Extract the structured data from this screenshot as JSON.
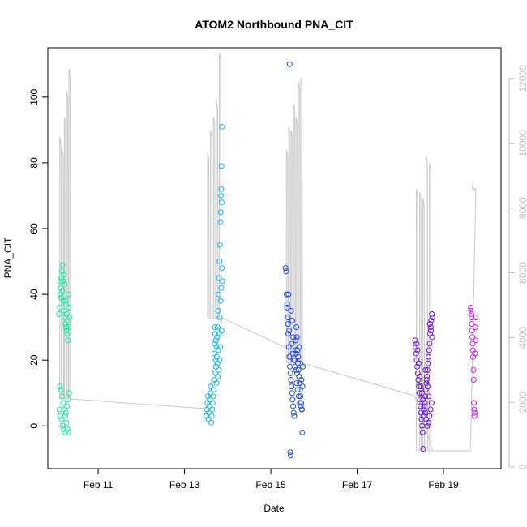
{
  "chart_data": {
    "type": "scatter",
    "title": "ATOM2 Northbound PNA_CIT",
    "xlabel": "Date",
    "ylabel": "PNA_CIT",
    "xlim": [
      "2021-02-09T20:00",
      "2021-02-20T08:00"
    ],
    "ylim": [
      -13,
      115
    ],
    "x_ticks": [
      {
        "label": "Feb 11",
        "x": "2021-02-11"
      },
      {
        "label": "Feb 13",
        "x": "2021-02-13"
      },
      {
        "label": "Feb 15",
        "x": "2021-02-15"
      },
      {
        "label": "Feb 17",
        "x": "2021-02-17"
      },
      {
        "label": "Feb 19",
        "x": "2021-02-19"
      }
    ],
    "y_ticks": [
      0,
      20,
      40,
      60,
      80,
      100
    ],
    "y2lim": [
      -50,
      12950
    ],
    "y2_ticks": [
      0,
      2000,
      4000,
      6000,
      8000,
      10000,
      12000
    ],
    "colors": {
      "secondary_line": "#c8c8c8",
      "secondary_axis": "#bebebe",
      "axis": "#000000"
    },
    "series": [
      {
        "color": "#1de9a5",
        "time_range": [
          "2021-02-10T02:00",
          "2021-02-10T08:00"
        ],
        "points": [
          [
            0.05,
            34
          ],
          [
            0.1,
            36
          ],
          [
            0.15,
            40
          ],
          [
            0.2,
            42
          ],
          [
            0.25,
            45
          ],
          [
            0.3,
            47
          ],
          [
            0.35,
            49
          ],
          [
            0.4,
            44
          ],
          [
            0.45,
            38
          ],
          [
            0.5,
            35
          ],
          [
            0.55,
            33
          ],
          [
            0.6,
            31
          ],
          [
            0.65,
            37
          ],
          [
            0.7,
            30
          ],
          [
            0.75,
            29
          ],
          [
            0.8,
            28
          ],
          [
            0.85,
            26
          ],
          [
            0.9,
            40
          ],
          [
            0.95,
            36
          ],
          [
            1.0,
            33
          ],
          [
            0.08,
            5
          ],
          [
            0.18,
            3
          ],
          [
            0.28,
            2
          ],
          [
            0.38,
            0
          ],
          [
            0.48,
            -1
          ],
          [
            0.58,
            -2
          ],
          [
            0.68,
            4
          ],
          [
            0.78,
            6
          ],
          [
            0.88,
            8
          ],
          [
            0.98,
            10
          ],
          [
            0.12,
            12
          ],
          [
            0.22,
            11
          ],
          [
            0.32,
            9
          ],
          [
            0.42,
            7
          ],
          [
            0.52,
            5
          ],
          [
            0.62,
            3
          ],
          [
            0.72,
            1
          ],
          [
            0.82,
            -1
          ],
          [
            0.92,
            -2
          ],
          [
            0.15,
            44
          ],
          [
            0.25,
            39
          ],
          [
            0.35,
            41
          ],
          [
            0.45,
            46
          ],
          [
            0.55,
            43
          ],
          [
            0.65,
            38
          ],
          [
            0.75,
            34
          ],
          [
            0.85,
            32
          ],
          [
            0.95,
            30
          ]
        ]
      },
      {
        "color": "#18b9e6",
        "time_range": [
          "2021-02-13T12:00",
          "2021-02-13T21:00"
        ],
        "points": [
          [
            0.02,
            3
          ],
          [
            0.05,
            5
          ],
          [
            0.08,
            7
          ],
          [
            0.11,
            9
          ],
          [
            0.14,
            2
          ],
          [
            0.17,
            4
          ],
          [
            0.2,
            6
          ],
          [
            0.23,
            8
          ],
          [
            0.26,
            10
          ],
          [
            0.29,
            12
          ],
          [
            0.32,
            1
          ],
          [
            0.35,
            3
          ],
          [
            0.38,
            5
          ],
          [
            0.41,
            7
          ],
          [
            0.44,
            9
          ],
          [
            0.47,
            11
          ],
          [
            0.5,
            22
          ],
          [
            0.53,
            25
          ],
          [
            0.56,
            28
          ],
          [
            0.59,
            20
          ],
          [
            0.62,
            18
          ],
          [
            0.65,
            24
          ],
          [
            0.68,
            27
          ],
          [
            0.71,
            30
          ],
          [
            0.74,
            35
          ],
          [
            0.77,
            40
          ],
          [
            0.8,
            45
          ],
          [
            0.83,
            50
          ],
          [
            0.86,
            55
          ],
          [
            0.89,
            62
          ],
          [
            0.92,
            70
          ],
          [
            0.95,
            79
          ],
          [
            0.97,
            91
          ],
          [
            0.99,
            44
          ],
          [
            0.55,
            30
          ],
          [
            0.6,
            26
          ],
          [
            0.66,
            21
          ],
          [
            0.7,
            19
          ],
          [
            0.75,
            23
          ],
          [
            0.8,
            28
          ],
          [
            0.85,
            33
          ],
          [
            0.9,
            38
          ],
          [
            0.94,
            42
          ],
          [
            0.98,
            48
          ],
          [
            0.9,
            65
          ],
          [
            0.93,
            72
          ],
          [
            0.96,
            68
          ],
          [
            0.52,
            14
          ],
          [
            0.58,
            16
          ],
          [
            0.64,
            13
          ],
          [
            0.72,
            15
          ],
          [
            0.78,
            17
          ],
          [
            0.84,
            20
          ],
          [
            0.88,
            24
          ],
          [
            0.96,
            29
          ]
        ]
      },
      {
        "color": "#1f49e0",
        "time_range": [
          "2021-02-15T08:00",
          "2021-02-15T18:00"
        ],
        "points": [
          [
            0.02,
            48
          ],
          [
            0.05,
            47
          ],
          [
            0.08,
            40
          ],
          [
            0.11,
            37
          ],
          [
            0.14,
            33
          ],
          [
            0.17,
            28
          ],
          [
            0.2,
            24
          ],
          [
            0.23,
            21
          ],
          [
            0.26,
            18
          ],
          [
            0.29,
            16
          ],
          [
            0.32,
            14
          ],
          [
            0.35,
            12
          ],
          [
            0.38,
            10
          ],
          [
            0.41,
            8
          ],
          [
            0.44,
            6
          ],
          [
            0.47,
            4
          ],
          [
            0.5,
            3
          ],
          [
            0.53,
            20
          ],
          [
            0.56,
            22
          ],
          [
            0.59,
            26
          ],
          [
            0.62,
            30
          ],
          [
            0.65,
            27
          ],
          [
            0.68,
            23
          ],
          [
            0.71,
            19
          ],
          [
            0.74,
            17
          ],
          [
            0.77,
            15
          ],
          [
            0.8,
            13
          ],
          [
            0.83,
            11
          ],
          [
            0.86,
            9
          ],
          [
            0.89,
            7
          ],
          [
            0.92,
            5
          ],
          [
            0.95,
            -2
          ],
          [
            0.25,
            110
          ],
          [
            0.28,
            -8
          ],
          [
            0.3,
            -9
          ],
          [
            0.1,
            36
          ],
          [
            0.15,
            31
          ],
          [
            0.22,
            29
          ],
          [
            0.36,
            25
          ],
          [
            0.42,
            22
          ],
          [
            0.48,
            20
          ],
          [
            0.54,
            18
          ],
          [
            0.6,
            17
          ],
          [
            0.66,
            16
          ],
          [
            0.72,
            21
          ],
          [
            0.78,
            24
          ],
          [
            0.84,
            19
          ],
          [
            0.9,
            14
          ],
          [
            0.96,
            12
          ],
          [
            0.18,
            40
          ],
          [
            0.33,
            35
          ],
          [
            0.39,
            32
          ],
          [
            0.45,
            27
          ],
          [
            0.57,
            23
          ],
          [
            0.63,
            13
          ],
          [
            0.69,
            11
          ],
          [
            0.75,
            9
          ],
          [
            0.81,
            7
          ],
          [
            0.87,
            6
          ],
          [
            0.93,
            5
          ],
          [
            0.98,
            18
          ]
        ]
      },
      {
        "color": "#6a10ea",
        "time_range": [
          "2021-02-18T08:00",
          "2021-02-18T18:00"
        ],
        "points": [
          [
            0.02,
            26
          ],
          [
            0.05,
            24
          ],
          [
            0.08,
            22
          ],
          [
            0.11,
            20
          ],
          [
            0.14,
            18
          ],
          [
            0.17,
            16
          ],
          [
            0.2,
            14
          ],
          [
            0.23,
            12
          ],
          [
            0.26,
            10
          ],
          [
            0.29,
            8
          ],
          [
            0.32,
            6
          ],
          [
            0.35,
            4
          ],
          [
            0.38,
            2
          ],
          [
            0.41,
            0
          ],
          [
            0.44,
            -2
          ],
          [
            0.47,
            -7
          ],
          [
            0.5,
            3
          ],
          [
            0.53,
            5
          ],
          [
            0.56,
            7
          ],
          [
            0.59,
            9
          ],
          [
            0.62,
            11
          ],
          [
            0.65,
            13
          ],
          [
            0.68,
            15
          ],
          [
            0.71,
            17
          ],
          [
            0.74,
            19
          ],
          [
            0.77,
            21
          ],
          [
            0.8,
            23
          ],
          [
            0.83,
            25
          ],
          [
            0.86,
            28
          ],
          [
            0.89,
            30
          ],
          [
            0.92,
            32
          ],
          [
            0.95,
            34
          ],
          [
            0.98,
            33
          ],
          [
            0.1,
            25
          ],
          [
            0.15,
            23
          ],
          [
            0.22,
            19
          ],
          [
            0.28,
            15
          ],
          [
            0.34,
            12
          ],
          [
            0.4,
            10
          ],
          [
            0.46,
            8
          ],
          [
            0.52,
            6
          ],
          [
            0.58,
            4
          ],
          [
            0.64,
            2
          ],
          [
            0.7,
            0
          ],
          [
            0.76,
            1
          ],
          [
            0.82,
            3
          ],
          [
            0.88,
            5
          ],
          [
            0.94,
            7
          ],
          [
            0.97,
            27
          ],
          [
            0.9,
            29
          ],
          [
            0.85,
            31
          ],
          [
            0.6,
            17
          ],
          [
            0.66,
            14
          ],
          [
            0.72,
            12
          ],
          [
            0.78,
            9
          ]
        ]
      },
      {
        "color": "#d81aec",
        "time_range": [
          "2021-02-19T15:00",
          "2021-02-19T18:00"
        ],
        "points": [
          [
            0.05,
            36
          ],
          [
            0.1,
            35
          ],
          [
            0.15,
            34
          ],
          [
            0.2,
            33
          ],
          [
            0.25,
            31
          ],
          [
            0.3,
            29
          ],
          [
            0.35,
            27
          ],
          [
            0.4,
            25
          ],
          [
            0.45,
            23
          ],
          [
            0.5,
            21
          ],
          [
            0.55,
            17
          ],
          [
            0.6,
            14
          ],
          [
            0.65,
            7
          ],
          [
            0.7,
            5
          ],
          [
            0.75,
            3
          ],
          [
            0.8,
            4
          ],
          [
            0.85,
            22
          ],
          [
            0.9,
            30
          ],
          [
            0.95,
            33
          ],
          [
            1.0,
            26
          ]
        ]
      }
    ],
    "secondary_line": {
      "axis": "right",
      "segments": [
        {
          "x0": "2021-02-10T02:00",
          "x1": "2021-02-10T09:00",
          "peaks": [
            10200,
            9800,
            10800,
            11600,
            12300
          ],
          "end": 2100
        },
        {
          "x0": "2021-02-13T12:00",
          "x1": "2021-02-13T21:00",
          "peaks": [
            9700,
            10400,
            10800,
            11300,
            12800
          ],
          "end": 4600
        },
        {
          "x0": "2021-02-15T08:00",
          "x1": "2021-02-15T18:00",
          "peaks": [
            9800,
            10500,
            10400,
            11200,
            10800,
            11900,
            12000
          ],
          "end": 3200
        },
        {
          "x0": "2021-02-18T08:00",
          "x1": "2021-02-18T18:00",
          "peaks": [
            8600,
            8500,
            8300,
            9600,
            9400
          ],
          "end": 500
        },
        {
          "x0": "2021-02-19T15:00",
          "x1": "2021-02-19T18:00",
          "peaks": [
            8700
          ],
          "end": 8600
        }
      ],
      "baseline": [
        [
          "2021-02-10T09:00",
          2100
        ],
        [
          "2021-02-13T12:00",
          1800
        ],
        [
          "2021-02-13T21:00",
          4600
        ],
        [
          "2021-02-15T08:00",
          3700
        ],
        [
          "2021-02-15T18:00",
          3200
        ],
        [
          "2021-02-18T08:00",
          2200
        ],
        [
          "2021-02-18T18:00",
          500
        ],
        [
          "2021-02-19T15:00",
          500
        ],
        [
          "2021-02-19T18:00",
          8600
        ]
      ]
    }
  }
}
